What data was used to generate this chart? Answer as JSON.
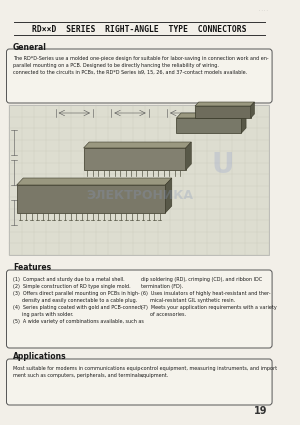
{
  "page_bg": "#f2efe8",
  "box_bg": "#f5f3ec",
  "title": "RD××D  SERIES  RIGHT-ANGLE  TYPE  CONNECTORS",
  "title_fontsize": 5.8,
  "general_label": "General",
  "general_text_left": "The RD*D-Series use a molded one-piece design for\nparallel mounting on a PCB. Designed to be directly\nconnected to the circuits in PCBs, the RD*D Series is",
  "general_text_right": "suitable for labor-saving in connection work and en-\nhancing the reliability of wiring.\n9, 15, 26, and 37-contact models available.",
  "features_label": "Features",
  "features_text_left": "(1)  Compact and sturdy due to a metal shell.\n(2)  Simple construction of RD type single mold.\n(3)  Offers direct parallel mounting on PCBs in high-\n      density and easily connectable to a cable plug.\n(4)  Series plating coated with gold and PCB-connect-\n      ing parts with solder.\n(5)  A wide variety of combinations available, such as",
  "features_text_right": "dip soldering (RD), crimping (CD), and ribbon IDC\ntermination (FD).\n(6)  Uses insulators of highly heat-resistant and ther-\n      mical-resistant GIL synthetic resin.\n(7)  Meets your application requirements with a variety\n      of accessories.",
  "applications_label": "Applications",
  "applications_text_left": "Most suitable for modems in communications equip-\nment such as computers, peripherals, and terminals,",
  "applications_text_right": "control equipment, measuring instruments, and import\nequipment.",
  "page_number": "19",
  "watermark_text": "ЭЛЕКТРОНИКА",
  "section_label_fontsize": 5.5,
  "body_fontsize": 3.5,
  "edge_color": "#555555",
  "text_color": "#1a1a1a",
  "grid_color": "#c8c8b8",
  "connector_color": "#7a7868",
  "connector_dark": "#4a4840"
}
